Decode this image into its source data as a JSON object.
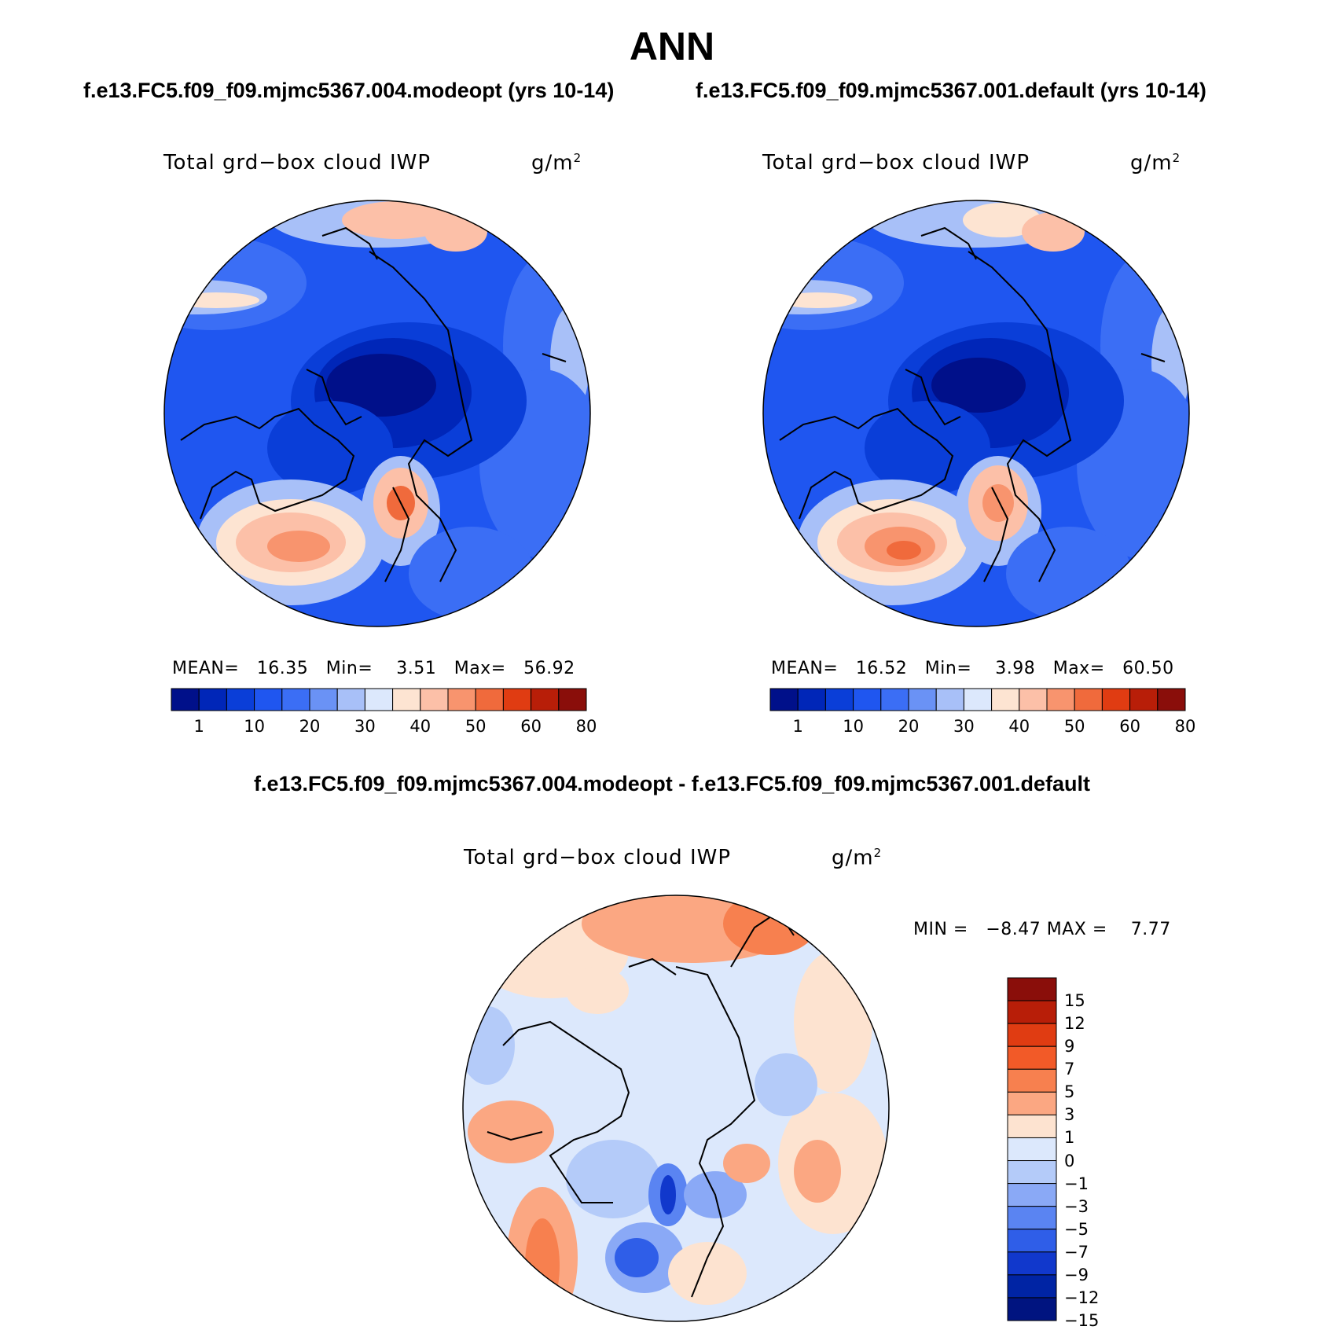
{
  "page_title": "ANN",
  "panels": [
    {
      "case_title": "f.e13.FC5.f09_f09.mjmc5367.004.modeopt (yrs 10-14)",
      "variable": "Total grd−box cloud IWP",
      "units": "g/m",
      "units_exponent": "2",
      "stats": {
        "mean_label": "MEAN=",
        "mean": "16.35",
        "min_label": "Min=",
        "min": "3.51",
        "max_label": "Max=",
        "max": "56.92"
      }
    },
    {
      "case_title": "f.e13.FC5.f09_f09.mjmc5367.001.default (yrs 10-14)",
      "variable": "Total grd−box cloud IWP",
      "units": "g/m",
      "units_exponent": "2",
      "stats": {
        "mean_label": "MEAN=",
        "mean": "16.52",
        "min_label": "Min=",
        "min": "3.98",
        "max_label": "Max=",
        "max": "60.50"
      }
    }
  ],
  "difference": {
    "title": "f.e13.FC5.f09_f09.mjmc5367.004.modeopt - f.e13.FC5.f09_f09.mjmc5367.001.default",
    "variable": "Total grd−box cloud IWP",
    "units": "g/m",
    "units_exponent": "2",
    "stats": {
      "min_label": "MIN =",
      "min": "−8.47",
      "max_label": "MAX =",
      "max": "7.77"
    }
  },
  "abs_colorbar": {
    "colors": [
      "#00108a",
      "#0026b8",
      "#0a3ed8",
      "#1f56f0",
      "#3b6ef5",
      "#6a92f5",
      "#a8c0f8",
      "#dce8fc",
      "#fde4d2",
      "#fcc0a8",
      "#f8946e",
      "#f06a3c",
      "#e03c12",
      "#b81e08",
      "#8a0e0a"
    ],
    "labels": [
      "1",
      "10",
      "20",
      "30",
      "40",
      "50",
      "60",
      "80"
    ]
  },
  "diff_colorbar": {
    "colors_top_to_bottom": [
      "#8a0e0a",
      "#b81e08",
      "#e03c12",
      "#f25a28",
      "#f7804f",
      "#fba782",
      "#fde3d0",
      "#dce8fc",
      "#b4cbf9",
      "#8aa9f6",
      "#5a84f2",
      "#2f5ee8",
      "#1138cc",
      "#0024a4",
      "#001480"
    ],
    "labels_top_to_bottom": [
      "15",
      "12",
      "9",
      "7",
      "5",
      "3",
      "1",
      "0",
      "−1",
      "−3",
      "−5",
      "−7",
      "−9",
      "−12",
      "−15"
    ]
  }
}
